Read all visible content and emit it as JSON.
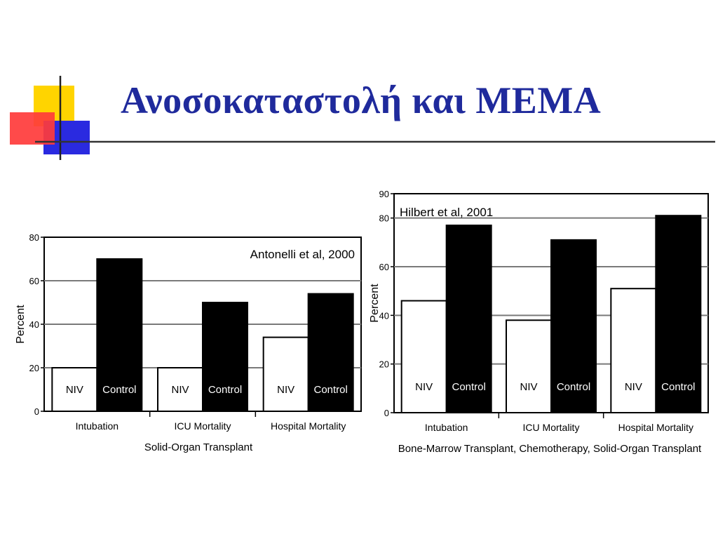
{
  "slide": {
    "title": "Ανοσοκαταστολή και ΜΕΜΑ"
  },
  "colors": {
    "title": "#1f2a9c",
    "deco_yellow": "#ffd400",
    "deco_red": "#ff3b3b",
    "deco_blue": "#2a2ae0"
  },
  "chart_data": [
    {
      "type": "bar",
      "annotation": "Antonelli et al, 2000",
      "ylabel": "Percent",
      "xlabel": "Solid-Organ Transplant",
      "categories": [
        "Intubation",
        "ICU Mortality",
        "Hospital Mortality"
      ],
      "series": [
        {
          "name": "NIV",
          "values": [
            20,
            20,
            34
          ],
          "fill": "#ffffff"
        },
        {
          "name": "Control",
          "values": [
            70,
            50,
            54
          ],
          "fill": "#000000"
        }
      ],
      "ylim": [
        0,
        80
      ],
      "yticks": [
        0,
        20,
        40,
        60,
        80
      ],
      "grid": true,
      "legend": "inside-bars"
    },
    {
      "type": "bar",
      "annotation": "Hilbert et al, 2001",
      "ylabel": "Percent",
      "xlabel": "Bone-Marrow Transplant, Chemotherapy, Solid-Organ Transplant",
      "categories": [
        "Intubation",
        "ICU Mortality",
        "Hospital Mortality"
      ],
      "series": [
        {
          "name": "NIV",
          "values": [
            46,
            38,
            51
          ],
          "fill": "#ffffff"
        },
        {
          "name": "Control",
          "values": [
            77,
            71,
            81
          ],
          "fill": "#000000"
        }
      ],
      "ylim": [
        0,
        90
      ],
      "yticks": [
        0,
        20,
        40,
        60,
        80,
        90
      ],
      "grid": true,
      "legend": "inside-bars"
    }
  ]
}
